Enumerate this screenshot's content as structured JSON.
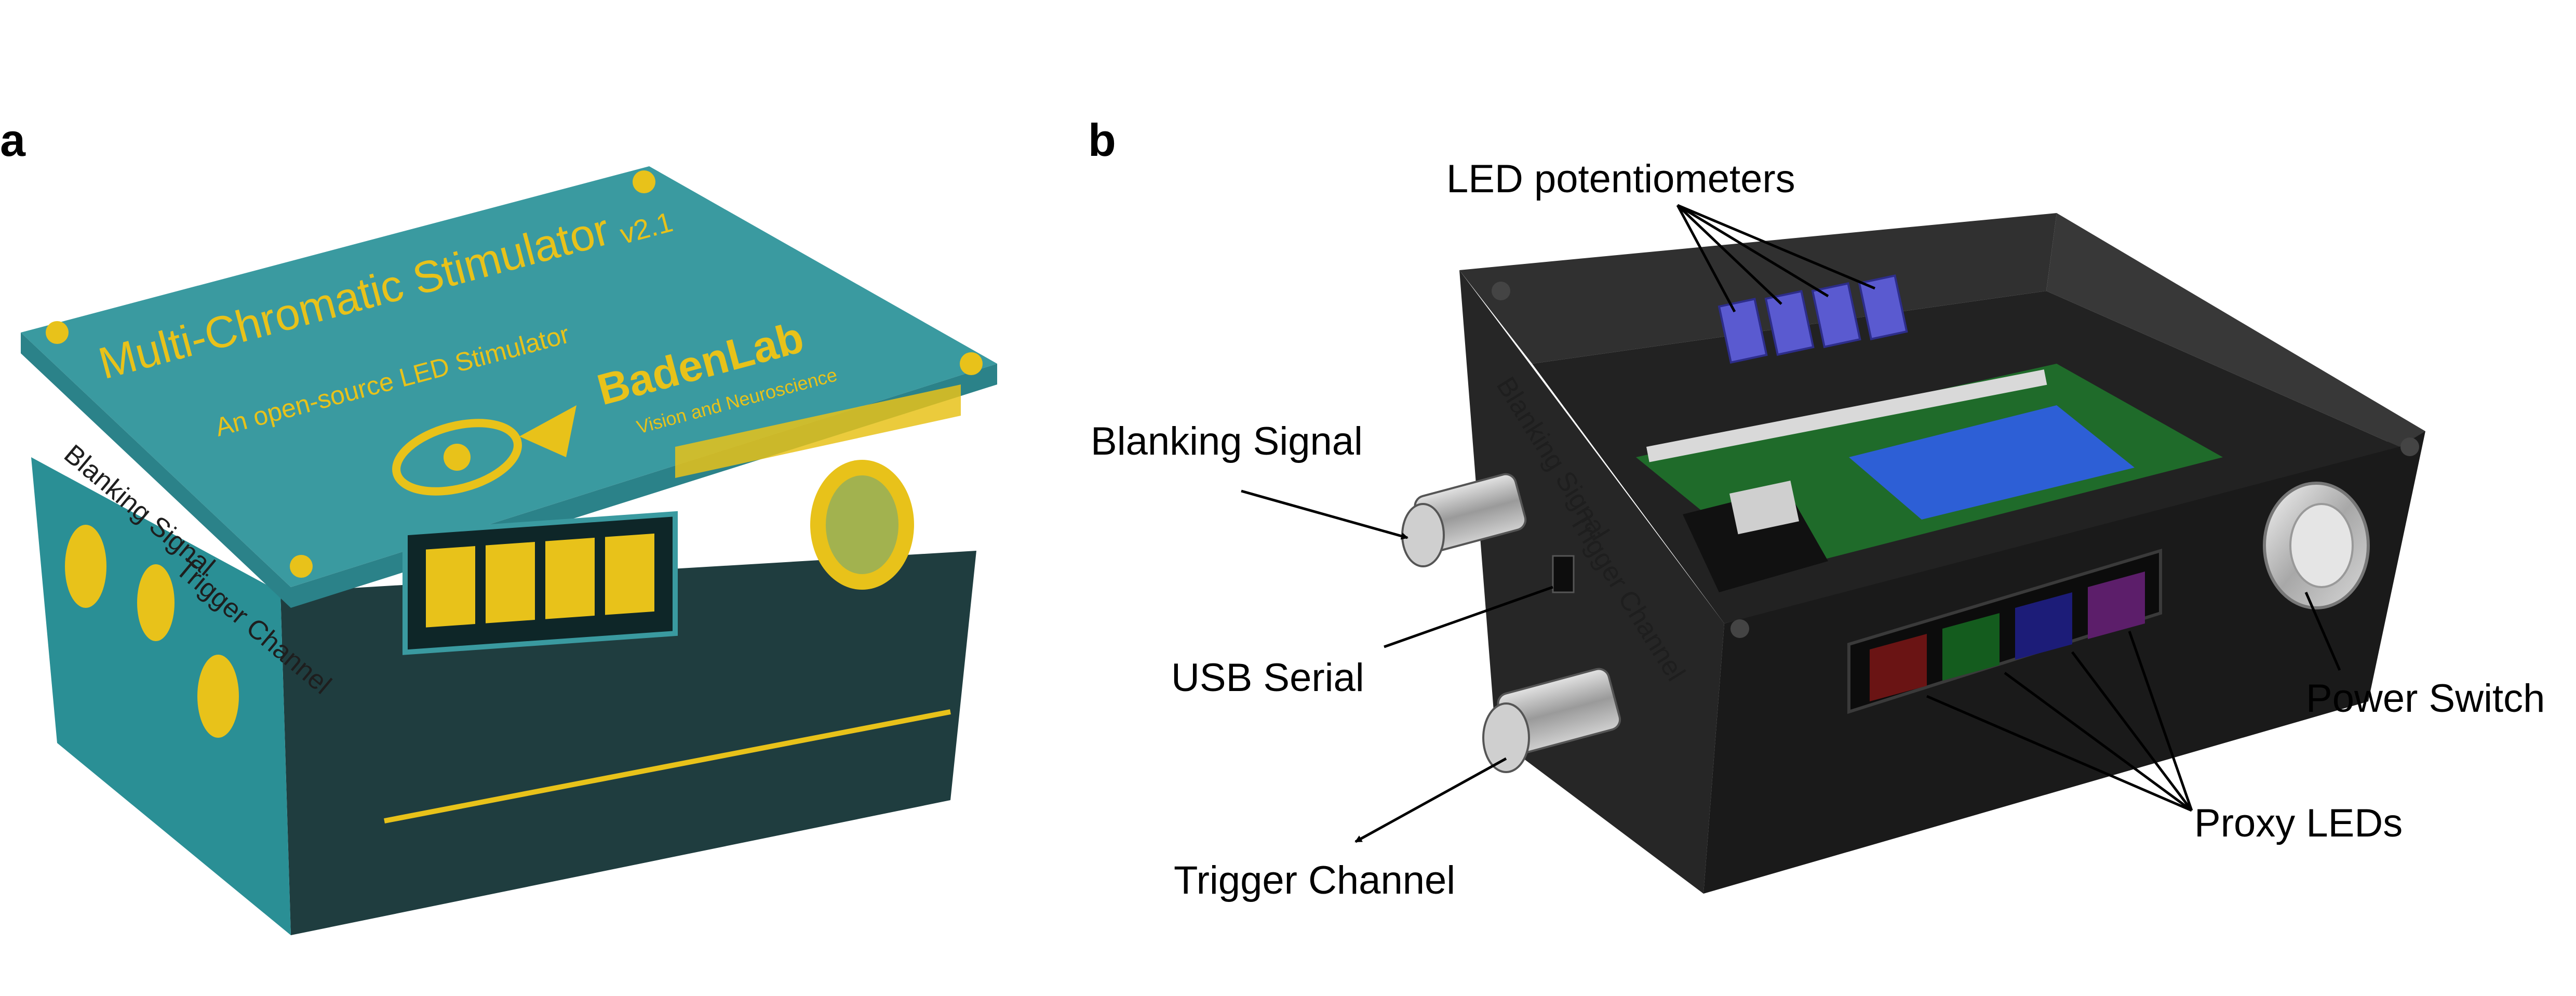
{
  "panels": {
    "a": {
      "letter": "a"
    },
    "b": {
      "letter": "b"
    }
  },
  "enclosure_a": {
    "lid_title": "Multi-Chromatic Stimulator",
    "lid_version": "v2.1",
    "lid_subtitle": "An open-source LED Stimulator",
    "lab_name": "BadenLab",
    "lab_tagline": "Vision and Neuroscience",
    "side_label_1": "Blanking Signal",
    "side_label_2": "Trigger Channel"
  },
  "enclosure_b": {
    "side_label_1": "Blanking Signal",
    "side_label_2": "Trigger Channel"
  },
  "callouts": {
    "led_potentiometers": "LED potentiometers",
    "blanking_signal": "Blanking Signal",
    "usb_serial": "USB Serial",
    "trigger_channel": "Trigger Channel",
    "power_switch": "Power Switch",
    "proxy_leds": "Proxy LEDs"
  },
  "colors": {
    "lid_teal": "#3a9aa0",
    "body_teal": "#1f3d3f",
    "accent_yellow": "#e8c21a",
    "box_black": "#1a1a1a",
    "pcb_green": "#1f6b2a",
    "pot_blue": "#5a5ad0",
    "driver_blue": "#2d5fd6",
    "led_red": "#6a1414",
    "led_green": "#145c1e",
    "led_blue": "#1c1c78",
    "led_purple": "#5c1e6a"
  }
}
